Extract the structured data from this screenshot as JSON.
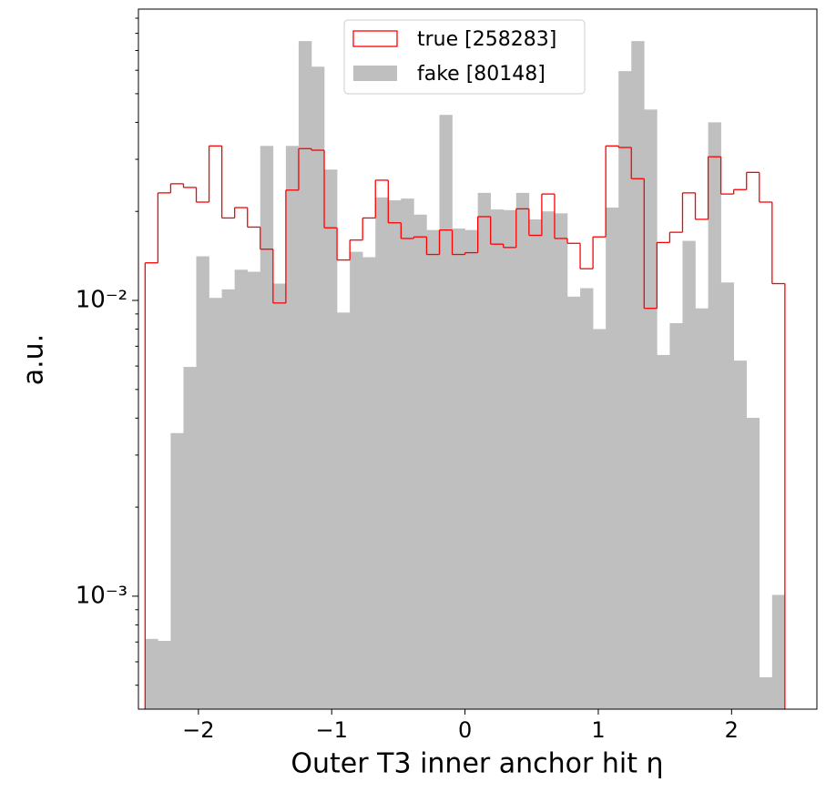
{
  "chart_data": {
    "type": "histogram",
    "xlabel": "Outer T3 inner anchor hit η",
    "ylabel": "a.u.",
    "bins": [
      -2.4,
      -2.304,
      -2.208,
      -2.112,
      -2.016,
      -1.92,
      -1.824,
      -1.728,
      -1.632,
      -1.536,
      -1.44,
      -1.344,
      -1.248,
      -1.152,
      -1.056,
      -0.96,
      -0.864,
      -0.768,
      -0.672,
      -0.576,
      -0.48,
      -0.384,
      -0.288,
      -0.192,
      -0.096,
      0,
      0.096,
      0.192,
      0.288,
      0.384,
      0.48,
      0.576,
      0.672,
      0.768,
      0.864,
      0.96,
      1.056,
      1.152,
      1.248,
      1.344,
      1.44,
      1.536,
      1.632,
      1.728,
      1.824,
      1.92,
      2.016,
      2.112,
      2.208,
      2.304,
      2.4
    ],
    "series": [
      {
        "name": "true [258283]",
        "color": "#ff0000",
        "style": "step",
        "values": [
          0.0134,
          0.0231,
          0.0248,
          0.0241,
          0.0215,
          0.0333,
          0.019,
          0.0206,
          0.0177,
          0.0149,
          0.0098,
          0.0236,
          0.0326,
          0.0322,
          0.0176,
          0.0137,
          0.016,
          0.019,
          0.0255,
          0.0183,
          0.0162,
          0.0164,
          0.0143,
          0.0173,
          0.0143,
          0.0145,
          0.0192,
          0.0155,
          0.0151,
          0.0204,
          0.0166,
          0.0229,
          0.0162,
          0.0156,
          0.0128,
          0.0164,
          0.0333,
          0.0329,
          0.0258,
          0.0094,
          0.0157,
          0.017,
          0.0231,
          0.0188,
          0.0306,
          0.0229,
          0.0237,
          0.0271,
          0.0215,
          0.0114
        ]
      },
      {
        "name": "fake [80148]",
        "color": "#bfbfbf",
        "style": "filled",
        "values": [
          0.000717,
          0.000706,
          0.00356,
          0.00596,
          0.0141,
          0.0102,
          0.0109,
          0.0127,
          0.0125,
          0.0333,
          0.0114,
          0.0333,
          0.0753,
          0.0617,
          0.0277,
          0.0091,
          0.0146,
          0.014,
          0.0223,
          0.0218,
          0.0221,
          0.0195,
          0.0173,
          0.0424,
          0.0175,
          0.0173,
          0.0231,
          0.0203,
          0.0202,
          0.0231,
          0.0188,
          0.02,
          0.0197,
          0.0103,
          0.011,
          0.008,
          0.0206,
          0.0596,
          0.0753,
          0.0442,
          0.00654,
          0.00838,
          0.0159,
          0.0094,
          0.04,
          0.0115,
          0.00626,
          0.00401,
          0.000532,
          0.00101
        ]
      }
    ],
    "xlim": [
      -2.45,
      2.64
    ],
    "xticks": [
      {
        "value": -2,
        "label": "−2"
      },
      {
        "value": -1,
        "label": "−1"
      },
      0,
      1,
      2
    ],
    "ylim": [
      0.000415,
      0.0966
    ],
    "yscale": "log",
    "yticks": [
      {
        "value": 0.001,
        "label": "10⁻³"
      },
      {
        "value": 0.01,
        "label": "10⁻²"
      }
    ],
    "yminorticks": [
      0.0005,
      0.0006,
      0.0007,
      0.0008,
      0.0009,
      0.002,
      0.003,
      0.004,
      0.005,
      0.006,
      0.007,
      0.008,
      0.009,
      0.02,
      0.03,
      0.04,
      0.05,
      0.06,
      0.07,
      0.08,
      0.09
    ],
    "legend": "upper center"
  }
}
